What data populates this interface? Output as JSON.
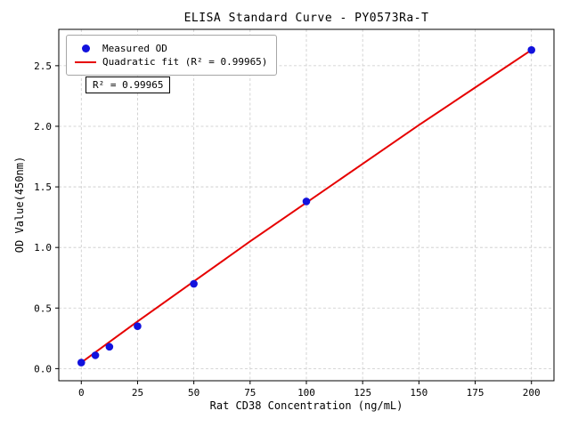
{
  "chart_data": {
    "type": "scatter",
    "title": "ELISA Standard Curve - PY0573Ra-T",
    "xlabel": "Rat CD38 Concentration (ng/mL)",
    "ylabel": "OD Value(450nm)",
    "xlim": [
      -10,
      210
    ],
    "ylim": [
      -0.1,
      2.8
    ],
    "xticks": [
      0,
      25,
      50,
      75,
      100,
      125,
      150,
      175,
      200
    ],
    "xtick_labels": [
      "0",
      "25",
      "50",
      "75",
      "100",
      "125",
      "150",
      "175",
      "200"
    ],
    "yticks": [
      0.0,
      0.5,
      1.0,
      1.5,
      2.0,
      2.5
    ],
    "ytick_labels": [
      "0.0",
      "0.5",
      "1.0",
      "1.5",
      "2.0",
      "2.5"
    ],
    "grid": true,
    "legend_position": "upper-left",
    "annotation": "R² = 0.99965",
    "colors": {
      "scatter": "#1212dd",
      "fit_line": "#e60000",
      "grid": "#c9c9c9"
    },
    "series": [
      {
        "name": "Measured OD",
        "type": "scatter",
        "color": "#1212dd",
        "x": [
          0,
          6.25,
          12.5,
          25,
          50,
          100,
          200
        ],
        "y": [
          0.05,
          0.11,
          0.18,
          0.35,
          0.7,
          1.38,
          2.63
        ]
      },
      {
        "name": "Quadratic fit (R² = 0.99965)",
        "type": "line",
        "color": "#e60000",
        "x": [
          0,
          25,
          50,
          75,
          100,
          125,
          150,
          175,
          200
        ],
        "y": [
          0.05,
          0.39,
          0.72,
          1.05,
          1.37,
          1.69,
          2.01,
          2.32,
          2.63
        ]
      }
    ]
  }
}
